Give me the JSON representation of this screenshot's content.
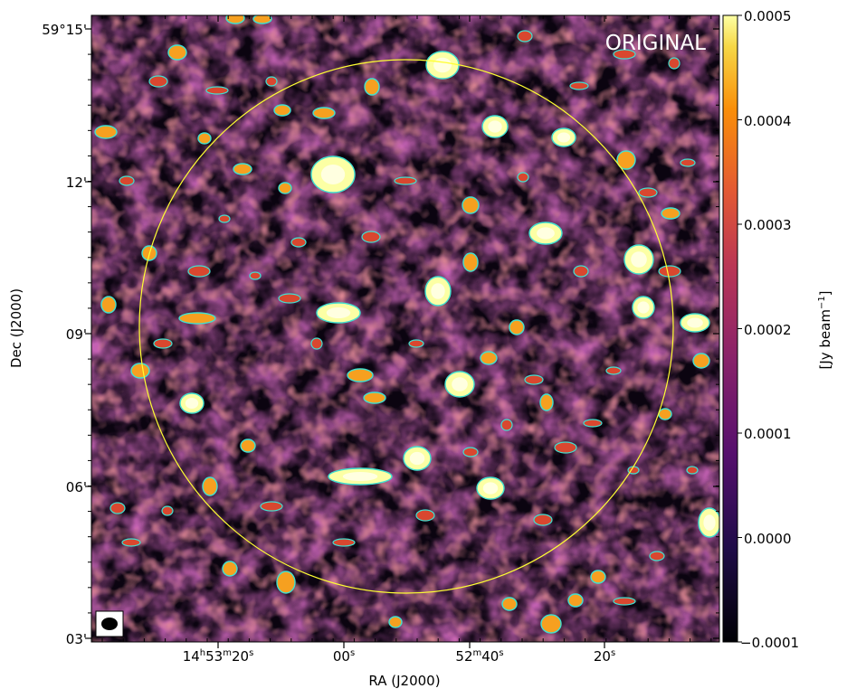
{
  "panel_label": "ORIGINAL",
  "axes": {
    "xlabel": "RA (J2000)",
    "ylabel": "Dec (J2000)",
    "x_ticks": [
      {
        "text": "14h53m20s",
        "h": "14",
        "m": "53",
        "s": "20"
      },
      {
        "text": "00s",
        "s": "00"
      },
      {
        "text": "52m40s",
        "m": "52",
        "s": "40"
      },
      {
        "text": "20s",
        "s": "20"
      }
    ],
    "y_ticks": [
      "59°15'",
      "12'",
      "09'",
      "06'",
      "03'"
    ]
  },
  "colorbar": {
    "label": "[Jy beam",
    "label_exp": "−1",
    "label_close": "]",
    "ticks": [
      "0.0005",
      "0.0004",
      "0.0003",
      "0.0002",
      "0.0001",
      "0.0000",
      "−0.0001"
    ],
    "colormap": "inferno",
    "range": [
      -0.0001,
      0.0005
    ]
  },
  "overlays": {
    "contour_color": "#40e0d0",
    "circle_color": "#ffff33",
    "beam_marker": "ellipse"
  }
}
